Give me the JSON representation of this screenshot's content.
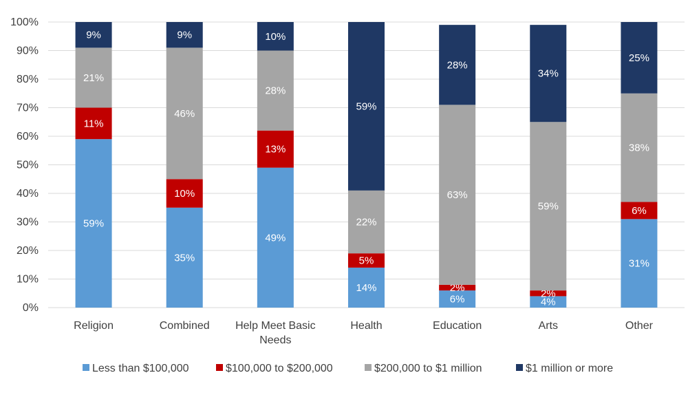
{
  "chart_data": {
    "type": "bar",
    "stacked": true,
    "orientation": "vertical",
    "categories": [
      [
        "Religion"
      ],
      [
        "Combined"
      ],
      [
        "Help Meet Basic",
        "Needs"
      ],
      [
        "Health"
      ],
      [
        "Education"
      ],
      [
        "Arts"
      ],
      [
        "Other"
      ]
    ],
    "series": [
      {
        "name": "Less than $100,000",
        "color": "#5B9BD5",
        "label_color": "#ffffff",
        "values": [
          59,
          35,
          49,
          14,
          6,
          4,
          31
        ],
        "labels": [
          "59%",
          "35%",
          "49%",
          "14%",
          "6%",
          "4%",
          "31%"
        ]
      },
      {
        "name": "$100,000 to $200,000",
        "color": "#C00000",
        "label_color": "#ffffff",
        "values": [
          11,
          10,
          13,
          5,
          2,
          2,
          6
        ],
        "labels": [
          "11%",
          "10%",
          "13%",
          "5%",
          "2%",
          "2%",
          "6%"
        ]
      },
      {
        "name": "$200,000 to $1 million",
        "color": "#A5A5A5",
        "label_color": "#ffffff",
        "values": [
          21,
          46,
          28,
          22,
          63,
          59,
          38
        ],
        "labels": [
          "21%",
          "46%",
          "28%",
          "22%",
          "63%",
          "59%",
          "38%"
        ]
      },
      {
        "name": "$1 million or more",
        "color": "#1F3864",
        "label_color": "#ffffff",
        "values": [
          9,
          9,
          10,
          59,
          28,
          34,
          25
        ],
        "labels": [
          "9%",
          "9%",
          "10%",
          "59%",
          "28%",
          "34%",
          "25%"
        ]
      }
    ],
    "ylim": [
      0,
      100
    ],
    "yticks": [
      "0%",
      "10%",
      "20%",
      "30%",
      "40%",
      "50%",
      "60%",
      "70%",
      "80%",
      "90%",
      "100%"
    ],
    "grid": true,
    "gridline_color": "#D9D9D9",
    "legend_position": "bottom",
    "title": "",
    "xlabel": "",
    "ylabel": ""
  }
}
